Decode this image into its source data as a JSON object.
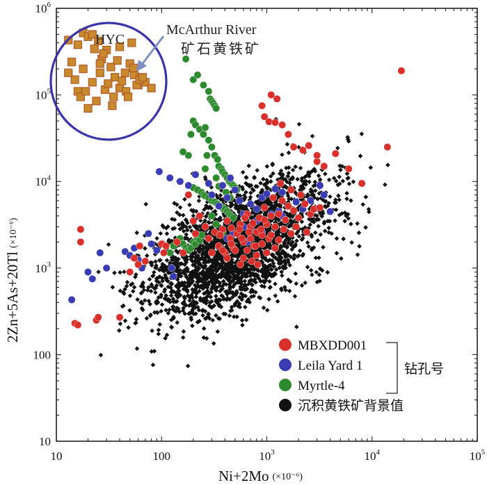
{
  "chart_data": {
    "type": "scatter",
    "title": "",
    "xlabel": {
      "text": "Ni+2Mo",
      "unit": "(×10⁻⁶)"
    },
    "ylabel": {
      "text": "2Zn+5As+20Tl",
      "unit": "(×10⁻⁶)"
    },
    "xscale": "log",
    "yscale": "log",
    "xlim": [
      10,
      100000
    ],
    "ylim": [
      10,
      1000000
    ],
    "x_ticks": [
      {
        "value": 10,
        "base": "10",
        "exp": ""
      },
      {
        "value": 100,
        "base": "100",
        "exp": ""
      },
      {
        "value": 1000,
        "base": "10",
        "exp": "3"
      },
      {
        "value": 10000,
        "base": "10",
        "exp": "4"
      },
      {
        "value": 100000,
        "base": "10",
        "exp": "5"
      }
    ],
    "y_ticks": [
      {
        "value": 10,
        "base": "10",
        "exp": ""
      },
      {
        "value": 100,
        "base": "100",
        "exp": ""
      },
      {
        "value": 1000,
        "base": "10",
        "exp": "3"
      },
      {
        "value": 10000,
        "base": "10",
        "exp": "4"
      },
      {
        "value": 100000,
        "base": "10",
        "exp": "5"
      },
      {
        "value": 1000000,
        "base": "10",
        "exp": "6"
      }
    ],
    "annotations": {
      "hyc_label": "HYC",
      "mcarthur_line1": "McArthur River",
      "mcarthur_line2": "矿石黄铁矿"
    },
    "legend": {
      "position": "bottom-right",
      "bracket_label": "钻孔号",
      "entries": [
        {
          "name": "MBXDD001",
          "color": "#d9302b"
        },
        {
          "name": "Leila Yard 1",
          "color": "#3a3cb3"
        },
        {
          "name": "Myrtle-4",
          "color": "#2e8a2e"
        },
        {
          "name": "沉积黄铁矿背景值",
          "color": "#111111"
        }
      ]
    },
    "series": [
      {
        "name": "HYC / McArthur River 矿石黄铁矿",
        "marker": "square",
        "color": "#c98a2e",
        "points": [
          [
            13,
            430000
          ],
          [
            14,
            240000
          ],
          [
            15,
            150000
          ],
          [
            16,
            110000
          ],
          [
            17,
            95000
          ],
          [
            13,
            180000
          ],
          [
            18,
            520000
          ],
          [
            20,
            470000
          ],
          [
            22,
            500000
          ],
          [
            23,
            340000
          ],
          [
            25,
            420000
          ],
          [
            27,
            260000
          ],
          [
            30,
            330000
          ],
          [
            33,
            210000
          ],
          [
            36,
            160000
          ],
          [
            40,
            120000
          ],
          [
            45,
            180000
          ],
          [
            50,
            230000
          ],
          [
            55,
            170000
          ],
          [
            60,
            130000
          ],
          [
            70,
            140000
          ],
          [
            40,
            360000
          ],
          [
            52,
            400000
          ],
          [
            18,
            200000
          ],
          [
            22,
            140000
          ],
          [
            26,
            180000
          ],
          [
            29,
            115000
          ],
          [
            35,
            95000
          ],
          [
            24,
            85000
          ],
          [
            20,
            70000
          ],
          [
            34,
            75000
          ],
          [
            16,
            380000
          ],
          [
            58,
            130000
          ],
          [
            62,
            150000
          ],
          [
            80,
            120000
          ],
          [
            28,
            300000
          ],
          [
            38,
            250000
          ],
          [
            46,
            110000
          ],
          [
            66,
            160000
          ],
          [
            31,
            135000
          ],
          [
            19,
            110000
          ],
          [
            42,
            145000
          ],
          [
            48,
            95000
          ],
          [
            54,
            205000
          ],
          [
            26,
            230000
          ]
        ]
      },
      {
        "name": "MBXDD001",
        "marker": "circle",
        "color": "#d9302b",
        "points": [
          [
            17,
            2800
          ],
          [
            17,
            2000
          ],
          [
            15,
            230
          ],
          [
            16,
            220
          ],
          [
            24,
            250
          ],
          [
            25,
            270
          ],
          [
            40,
            270
          ],
          [
            50,
            900
          ],
          [
            55,
            1300
          ],
          [
            60,
            1100
          ],
          [
            62,
            1800
          ],
          [
            70,
            1200
          ],
          [
            100,
            1900
          ],
          [
            105,
            1500
          ],
          [
            110,
            1800
          ],
          [
            140,
            2000
          ],
          [
            160,
            1500
          ],
          [
            180,
            7000
          ],
          [
            200,
            3500
          ],
          [
            210,
            2500
          ],
          [
            230,
            4000
          ],
          [
            260,
            3000
          ],
          [
            280,
            2200
          ],
          [
            300,
            1500
          ],
          [
            320,
            2600
          ],
          [
            350,
            1800
          ],
          [
            380,
            2800
          ],
          [
            400,
            1500
          ],
          [
            420,
            3500
          ],
          [
            450,
            2200
          ],
          [
            480,
            1700
          ],
          [
            520,
            2500
          ],
          [
            560,
            3200
          ],
          [
            600,
            2000
          ],
          [
            650,
            4200
          ],
          [
            700,
            3000
          ],
          [
            750,
            1800
          ],
          [
            800,
            2600
          ],
          [
            850,
            3800
          ],
          [
            900,
            2400
          ],
          [
            950,
            5000
          ],
          [
            1000,
            3200
          ],
          [
            1050,
            2200
          ],
          [
            1100,
            4000
          ],
          [
            1150,
            6500
          ],
          [
            1200,
            3000
          ],
          [
            1300,
            4200
          ],
          [
            1350,
            9500
          ],
          [
            1400,
            6000
          ],
          [
            1500,
            3600
          ],
          [
            1600,
            5200
          ],
          [
            1700,
            8000
          ],
          [
            1800,
            4600
          ],
          [
            2000,
            3800
          ],
          [
            2100,
            7000
          ],
          [
            2300,
            5500
          ],
          [
            2600,
            4200
          ],
          [
            2800,
            4800
          ],
          [
            3000,
            17000
          ],
          [
            3200,
            5000
          ],
          [
            1100,
            100000
          ],
          [
            1250,
            90000
          ],
          [
            900,
            75000
          ],
          [
            950,
            56000
          ],
          [
            1050,
            49000
          ],
          [
            1200,
            48000
          ],
          [
            1400,
            45000
          ],
          [
            1600,
            35000
          ],
          [
            1800,
            25000
          ],
          [
            2200,
            23000
          ],
          [
            2500,
            26000
          ],
          [
            3000,
            20000
          ],
          [
            3500,
            15000
          ],
          [
            4500,
            21000
          ],
          [
            6000,
            14000
          ],
          [
            8000,
            9500
          ],
          [
            14000,
            25000
          ],
          [
            19000,
            190000
          ],
          [
            700,
            2200
          ],
          [
            600,
            1300
          ],
          [
            500,
            1600
          ],
          [
            550,
            2800
          ],
          [
            650,
            1600
          ],
          [
            900,
            1900
          ],
          [
            1000,
            1500
          ],
          [
            1200,
            1700
          ],
          [
            800,
            1400
          ],
          [
            720,
            1200
          ],
          [
            880,
            2800
          ],
          [
            1100,
            2400
          ],
          [
            1300,
            2100
          ],
          [
            950,
            3600
          ],
          [
            740,
            3300
          ],
          [
            680,
            2600
          ],
          [
            420,
            1300
          ],
          [
            380,
            1600
          ],
          [
            360,
            2400
          ],
          [
            460,
            2900
          ],
          [
            580,
            2200
          ],
          [
            620,
            3800
          ],
          [
            560,
            1100
          ],
          [
            780,
            1800
          ],
          [
            820,
            1100
          ],
          [
            1450,
            2800
          ],
          [
            1700,
            2500
          ],
          [
            1900,
            3000
          ],
          [
            2400,
            2600
          ],
          [
            460,
            1900
          ]
        ]
      },
      {
        "name": "Leila Yard 1",
        "marker": "circle",
        "color": "#3a3cb3",
        "points": [
          [
            14,
            430
          ],
          [
            20,
            900
          ],
          [
            22,
            750
          ],
          [
            26,
            1500
          ],
          [
            30,
            1000
          ],
          [
            45,
            1550
          ],
          [
            50,
            1400
          ],
          [
            55,
            1700
          ],
          [
            60,
            1250
          ],
          [
            65,
            1000
          ],
          [
            75,
            2500
          ],
          [
            80,
            1900
          ],
          [
            90,
            1600
          ],
          [
            95,
            13000
          ],
          [
            120,
            11000
          ],
          [
            125,
            1000
          ],
          [
            130,
            800
          ],
          [
            150,
            10000
          ],
          [
            180,
            9000
          ],
          [
            210,
            12000
          ],
          [
            280,
            9500
          ],
          [
            300,
            7000
          ],
          [
            350,
            5200
          ],
          [
            380,
            9000
          ],
          [
            420,
            6500
          ],
          [
            450,
            11000
          ],
          [
            500,
            8000
          ],
          [
            550,
            6000
          ],
          [
            600,
            4200
          ],
          [
            700,
            5500
          ],
          [
            800,
            4800
          ],
          [
            900,
            6500
          ],
          [
            1000,
            7200
          ],
          [
            1200,
            8200
          ],
          [
            1400,
            7500
          ],
          [
            1600,
            5200
          ],
          [
            1900,
            5800
          ],
          [
            2200,
            4800
          ],
          [
            2600,
            6000
          ],
          [
            3200,
            9000
          ],
          [
            3500,
            7000
          ],
          [
            4000,
            4500
          ],
          [
            600,
            3000
          ],
          [
            650,
            2000
          ],
          [
            700,
            2800
          ],
          [
            800,
            3500
          ],
          [
            900,
            2600
          ],
          [
            1000,
            3200
          ],
          [
            1100,
            4200
          ],
          [
            1200,
            3000
          ],
          [
            1300,
            4500
          ],
          [
            1400,
            4000
          ],
          [
            1500,
            3600
          ],
          [
            420,
            2200
          ],
          [
            480,
            2500
          ]
        ]
      },
      {
        "name": "Myrtle-4",
        "marker": "circle",
        "color": "#2e8a2e",
        "points": [
          [
            170,
            260000
          ],
          [
            200,
            150000
          ],
          [
            220,
            170000
          ],
          [
            250,
            130000
          ],
          [
            280,
            110000
          ],
          [
            290,
            90000
          ],
          [
            300,
            85000
          ],
          [
            310,
            80000
          ],
          [
            320,
            75000
          ],
          [
            330,
            70000
          ],
          [
            200,
            50000
          ],
          [
            210,
            45000
          ],
          [
            230,
            40000
          ],
          [
            250,
            35000
          ],
          [
            260,
            42000
          ],
          [
            280,
            30000
          ],
          [
            300,
            25000
          ],
          [
            320,
            20000
          ],
          [
            340,
            18000
          ],
          [
            350,
            15000
          ],
          [
            370,
            14000
          ],
          [
            380,
            13000
          ],
          [
            400,
            12000
          ],
          [
            420,
            11000
          ],
          [
            440,
            10000
          ],
          [
            460,
            9500
          ],
          [
            480,
            9000
          ],
          [
            500,
            8500
          ],
          [
            520,
            8000
          ],
          [
            200,
            8500
          ],
          [
            220,
            8000
          ],
          [
            240,
            7500
          ],
          [
            250,
            7000
          ],
          [
            260,
            6800
          ],
          [
            280,
            6500
          ],
          [
            300,
            6000
          ],
          [
            320,
            5800
          ],
          [
            340,
            5500
          ],
          [
            360,
            5200
          ],
          [
            380,
            5000
          ],
          [
            400,
            4800
          ],
          [
            420,
            4500
          ],
          [
            440,
            4200
          ],
          [
            460,
            4000
          ],
          [
            480,
            3800
          ],
          [
            120,
            1500
          ],
          [
            130,
            1800
          ],
          [
            140,
            2000
          ],
          [
            150,
            2200
          ],
          [
            160,
            1900
          ],
          [
            170,
            1700
          ],
          [
            180,
            1600
          ],
          [
            190,
            1700
          ],
          [
            200,
            2000
          ],
          [
            210,
            1900
          ],
          [
            220,
            2200
          ],
          [
            230,
            2100
          ],
          [
            240,
            2400
          ],
          [
            180,
            20000
          ],
          [
            190,
            35000
          ],
          [
            160,
            22000
          ],
          [
            260,
            14000
          ],
          [
            270,
            20000
          ],
          [
            330,
            11000
          ],
          [
            350,
            8800
          ],
          [
            410,
            7500
          ],
          [
            450,
            6500
          ],
          [
            300,
            4000
          ],
          [
            330,
            3200
          ],
          [
            380,
            2600
          ]
        ]
      }
    ],
    "background_cloud": {
      "name": "沉积黄铁矿背景值",
      "marker": "diamond",
      "color": "#111111",
      "count": 2600,
      "center_log_x": 2.72,
      "center_log_y": 3.25
    }
  }
}
